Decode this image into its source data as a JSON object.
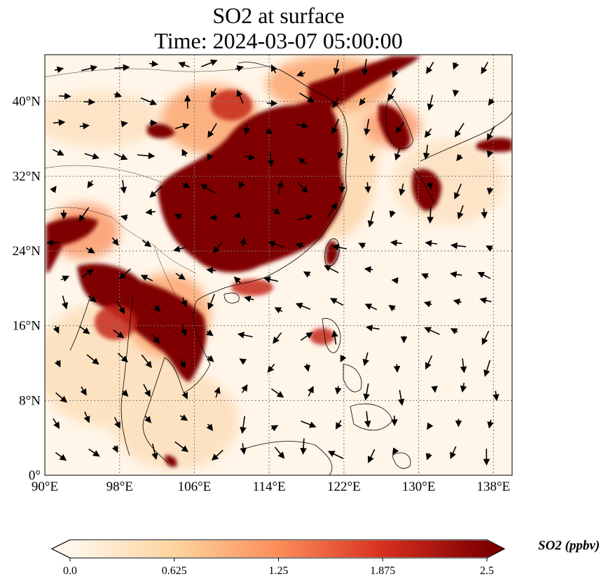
{
  "title": {
    "line1": "SO2 at surface",
    "line2": "Time: 2024-03-07 05:00:00"
  },
  "map": {
    "projection": "PlateCarree",
    "lon_range": [
      90,
      140
    ],
    "lat_range": [
      0,
      45
    ],
    "lon_ticks": [
      {
        "value": 90,
        "label": "90°E"
      },
      {
        "value": 98,
        "label": "98°E"
      },
      {
        "value": 106,
        "label": "106°E"
      },
      {
        "value": 114,
        "label": "114°E"
      },
      {
        "value": 122,
        "label": "122°E"
      },
      {
        "value": 130,
        "label": "130°E"
      },
      {
        "value": 138,
        "label": "138°E"
      }
    ],
    "lat_ticks": [
      {
        "value": 0,
        "label": "0°"
      },
      {
        "value": 8,
        "label": "8°N"
      },
      {
        "value": 16,
        "label": "16°N"
      },
      {
        "value": 24,
        "label": "24°N"
      },
      {
        "value": 32,
        "label": "32°N"
      },
      {
        "value": 40,
        "label": "40°N"
      }
    ],
    "gridlines": "dotted",
    "field": "SO2 concentration (filled) with wind vectors (arrows)",
    "high_regions": [
      "North China Plain",
      "Sichuan / Central China",
      "Southern China",
      "Korea",
      "Western Japan",
      "Myanmar / Northern Thailand / Laos / Cambodia"
    ]
  },
  "colorbar": {
    "label": "SO2 (ppbv)",
    "min": 0.0,
    "max": 2.5,
    "ticks": [
      "0.0",
      "0.625",
      "1.25",
      "1.875",
      "2.5"
    ],
    "extend": "both",
    "colormap": "OrRd",
    "colors": [
      "#fff7ec",
      "#fdd49e",
      "#fc8d59",
      "#d7301f",
      "#7f0000"
    ]
  }
}
